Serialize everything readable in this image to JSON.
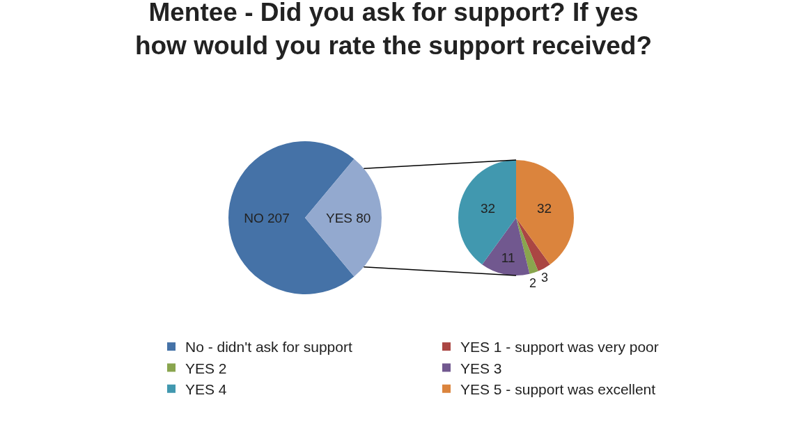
{
  "chart_data": [
    {
      "type": "pie",
      "title": "Mentee - Did you ask for support? If yes how would you rate the support received?",
      "categories": [
        "No - didn't ask for support",
        null
      ],
      "values": [
        207,
        80
      ],
      "value_labels": [
        "NO 207",
        "YES 80"
      ],
      "colors": [
        "#4572a7",
        "#93a9cf"
      ]
    },
    {
      "type": "pie",
      "categories": [
        "YES 1 - support was very poor",
        "YES 2",
        "YES 3",
        "YES 4",
        "YES 5 - support was excellent"
      ],
      "values": [
        3,
        2,
        11,
        32,
        32
      ],
      "colors": [
        "#aa4643",
        "#89a54e",
        "#71588f",
        "#4198af",
        "#db843d"
      ],
      "data_labels": true,
      "legend": "bottom"
    }
  ]
}
